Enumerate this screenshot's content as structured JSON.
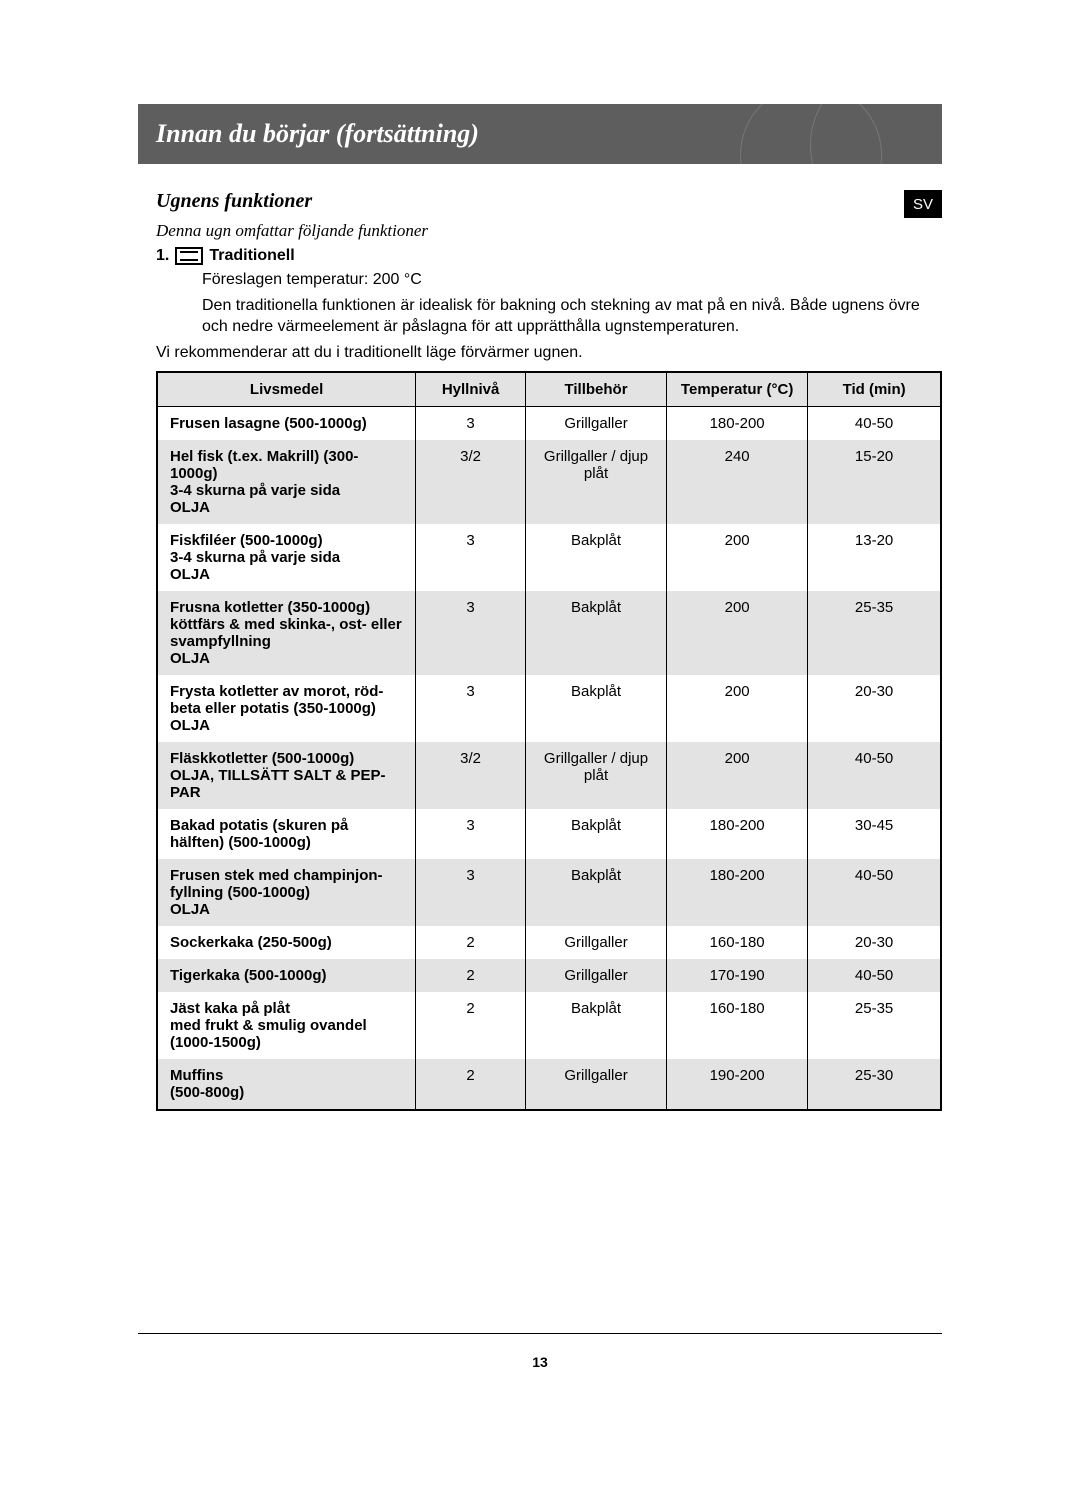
{
  "header": {
    "title": "Innan du börjar (fortsättning)"
  },
  "lang_badge": "SV",
  "section": {
    "heading": "Ugnens funktioner",
    "subtitle": "Denna ugn omfattar följande funktioner",
    "func_number": "1.",
    "func_name": "Traditionell",
    "suggested_temp": "Föreslagen temperatur: 200 °C",
    "description": "Den traditionella funktionen är idealisk för bakning och stekning av mat på en nivå. Både ugnens övre och nedre värmeelement är påslagna för att upprätthålla ugnstemperaturen.",
    "recommend": "Vi rekommenderar att du i traditionellt läge förvärmer ugnen."
  },
  "table": {
    "columns": [
      "Livsmedel",
      "Hyllnivå",
      "Tillbehör",
      "Temperatur (°C)",
      "Tid (min)"
    ],
    "rows": [
      {
        "food": "Frusen lasagne (500-1000g)",
        "shelf": "3",
        "acc": "Grillgaller",
        "temp": "180-200",
        "time": "40-50",
        "alt": false
      },
      {
        "food": "Hel fisk (t.ex. Makrill) (300-1000g)\n3-4 skurna på varje sida\nOLJA",
        "shelf": "3/2",
        "acc": "Grillgaller / djup plåt",
        "temp": "240",
        "time": "15-20",
        "alt": true
      },
      {
        "food": "Fiskfiléer (500-1000g)\n3-4 skurna på varje sida\nOLJA",
        "shelf": "3",
        "acc": "Bakplåt",
        "temp": "200",
        "time": "13-20",
        "alt": false
      },
      {
        "food": "Frusna kotletter (350-1000g) köttfärs & med skinka-, ost- eller svampfyllning\nOLJA",
        "shelf": "3",
        "acc": "Bakplåt",
        "temp": "200",
        "time": "25-35",
        "alt": true
      },
      {
        "food": "Frysta kotletter av morot, röd-beta eller potatis (350-1000g)\nOLJA",
        "shelf": "3",
        "acc": "Bakplåt",
        "temp": "200",
        "time": "20-30",
        "alt": false
      },
      {
        "food": "Fläskkotletter (500-1000g)\nOLJA, TILLSÄTT SALT & PEP-PAR",
        "shelf": "3/2",
        "acc": "Grillgaller / djup plåt",
        "temp": "200",
        "time": "40-50",
        "alt": true
      },
      {
        "food": "Bakad potatis (skuren på hälften) (500-1000g)",
        "shelf": "3",
        "acc": "Bakplåt",
        "temp": "180-200",
        "time": "30-45",
        "alt": false
      },
      {
        "food": "Frusen stek med champinjon-fyllning (500-1000g)\nOLJA",
        "shelf": "3",
        "acc": "Bakplåt",
        "temp": "180-200",
        "time": "40-50",
        "alt": true
      },
      {
        "food": "Sockerkaka (250-500g)",
        "shelf": "2",
        "acc": "Grillgaller",
        "temp": "160-180",
        "time": "20-30",
        "alt": false
      },
      {
        "food": "Tigerkaka (500-1000g)",
        "shelf": "2",
        "acc": "Grillgaller",
        "temp": "170-190",
        "time": "40-50",
        "alt": true
      },
      {
        "food": "Jäst kaka på plåt\nmed frukt & smulig ovandel\n(1000-1500g)",
        "shelf": "2",
        "acc": "Bakplåt",
        "temp": "160-180",
        "time": "25-35",
        "alt": false
      },
      {
        "food": "Muffins\n(500-800g)",
        "shelf": "2",
        "acc": "Grillgaller",
        "temp": "190-200",
        "time": "25-30",
        "alt": true
      }
    ]
  },
  "page_number": "13",
  "colors": {
    "header_bg": "#5e5e5e",
    "header_text": "#ffffff",
    "badge_bg": "#000000",
    "alt_row_bg": "#e3e3e3",
    "text": "#000000",
    "page_bg": "#ffffff"
  }
}
